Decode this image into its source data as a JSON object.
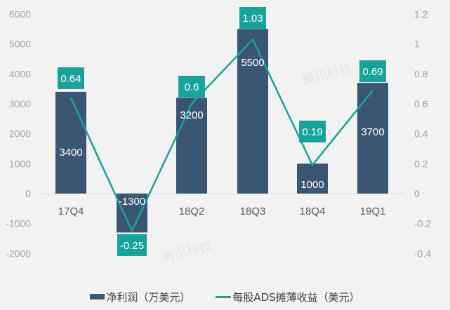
{
  "chart_data": {
    "type": "bar+line",
    "title": "",
    "categories": [
      "17Q4",
      "18Q1",
      "18Q2",
      "18Q3",
      "18Q4",
      "19Q1"
    ],
    "series": [
      {
        "name": "净利润（万美元）",
        "type": "bar",
        "axis": "left",
        "color": "#3b5673",
        "values": [
          3400,
          -1300,
          3200,
          5500,
          1000,
          3700
        ]
      },
      {
        "name": "每股ADS摊薄收益（美元）",
        "type": "line",
        "axis": "right",
        "color": "#17a39a",
        "values": [
          0.64,
          -0.25,
          0.6,
          1.03,
          0.19,
          0.69
        ]
      }
    ],
    "left_axis": {
      "ticks": [
        "6000",
        "5000",
        "4000",
        "3000",
        "2000",
        "1000",
        "0",
        "-1000",
        "-2000"
      ],
      "range": [
        -2000,
        6000
      ]
    },
    "right_axis": {
      "ticks": [
        "1.2",
        "1",
        "0.8",
        "0.6",
        "0.4",
        "0.2",
        "0",
        "-0.2",
        "-0.4"
      ],
      "range": [
        -0.4,
        1.2
      ]
    },
    "grid": false,
    "legend_position": "bottom"
  },
  "legend": {
    "bar_label": "净利润（万美元）",
    "line_label": "每股ADS摊薄收益（美元）"
  },
  "watermark": "腾讯科技"
}
